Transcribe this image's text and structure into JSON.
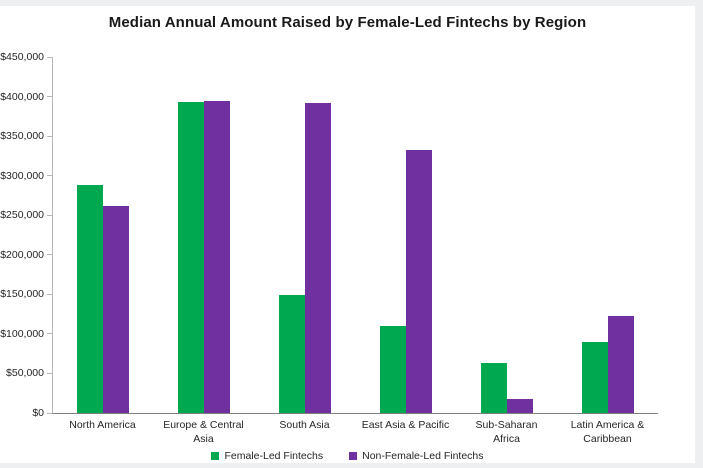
{
  "frame": {
    "background_color": "#edeff1",
    "panel_color": "#ffffff"
  },
  "chart_data": {
    "type": "bar",
    "title": "Median Annual Amount Raised by Female-Led Fintechs by Region",
    "categories": [
      "North America",
      "Europe & Central Asia",
      "South Asia",
      "East Asia & Pacific",
      "Sub-Saharan Africa",
      "Latin America & Caribbean"
    ],
    "series": [
      {
        "name": "Female-Led Fintechs",
        "color": "#00a84f",
        "values": [
          288000,
          393000,
          149000,
          110000,
          63000,
          90000
        ]
      },
      {
        "name": "Non-Female-Led Fintechs",
        "color": "#7030a0",
        "values": [
          262000,
          395000,
          392000,
          333000,
          18000,
          123000
        ]
      }
    ],
    "ylim": [
      0,
      450000
    ],
    "ytick_step": 50000,
    "ytick_labels": [
      "$0",
      "$50,000",
      "$100,000",
      "$150,000",
      "$200,000",
      "$250,000",
      "$300,000",
      "$350,000",
      "$400,000",
      "$450,000"
    ],
    "grid": false,
    "legend_position": "bottom",
    "axis_color": "#7f7f7f",
    "tick_color": "#b7b7b7",
    "text_color": "#262626"
  }
}
